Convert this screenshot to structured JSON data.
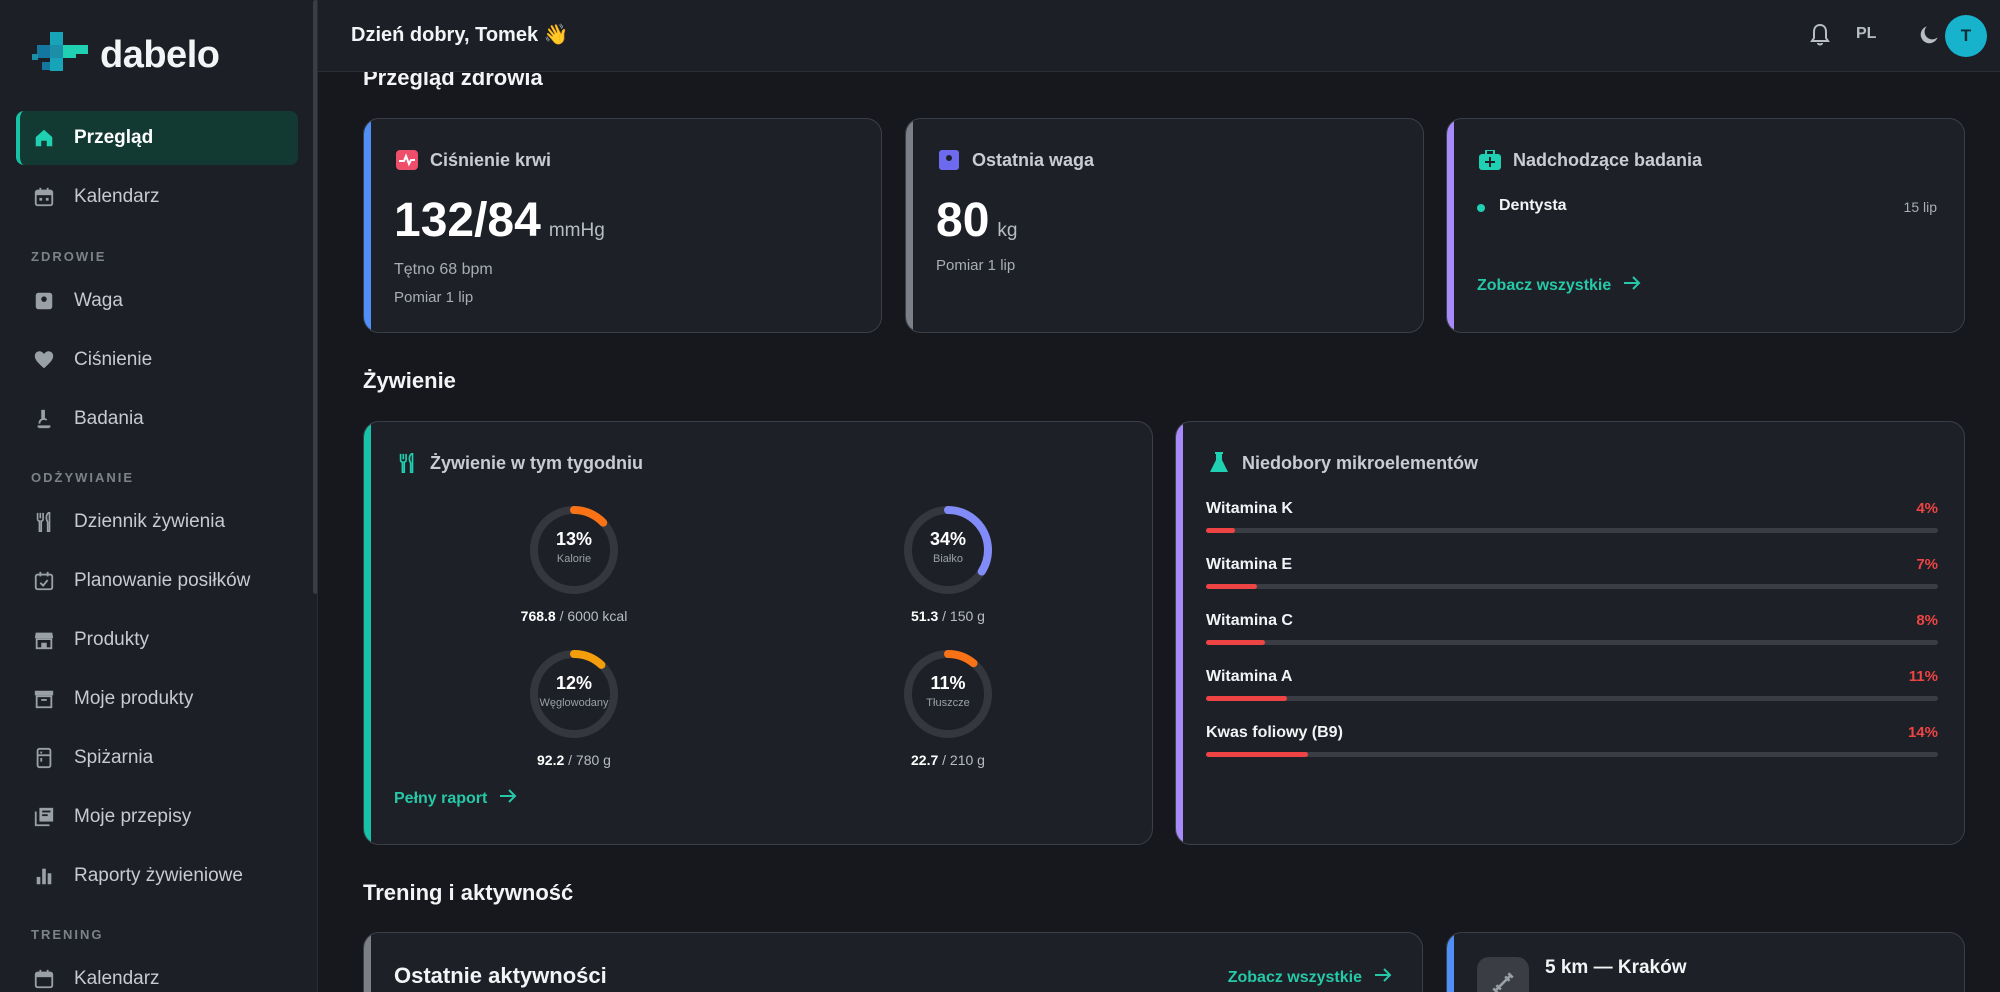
{
  "app": {
    "brand": "dabelo"
  },
  "header": {
    "greeting": "Dzień dobry, Tomek 👋",
    "lang": "PL",
    "avatar_initial": "T"
  },
  "sidebar": {
    "items": [
      {
        "label": "Przegląd",
        "icon": "home-icon",
        "active": true
      },
      {
        "label": "Kalendarz",
        "icon": "calendar-icon"
      }
    ],
    "sections": [
      {
        "title": "ZDROWIE",
        "items": [
          {
            "label": "Waga",
            "icon": "scale-icon"
          },
          {
            "label": "Ciśnienie",
            "icon": "heart-icon"
          },
          {
            "label": "Badania",
            "icon": "microscope-icon"
          }
        ]
      },
      {
        "title": "ODŻYWIANIE",
        "items": [
          {
            "label": "Dziennik żywienia",
            "icon": "utensils-icon"
          },
          {
            "label": "Planowanie posiłków",
            "icon": "calendar-check-icon"
          },
          {
            "label": "Produkty",
            "icon": "store-icon"
          },
          {
            "label": "Moje produkty",
            "icon": "archive-icon"
          },
          {
            "label": "Spiżarnia",
            "icon": "pantry-icon"
          },
          {
            "label": "Moje przepisy",
            "icon": "recipes-icon"
          },
          {
            "label": "Raporty żywieniowe",
            "icon": "bar-chart-icon"
          }
        ]
      },
      {
        "title": "TRENING",
        "items": [
          {
            "label": "Kalendarz",
            "icon": "calendar-icon"
          }
        ]
      }
    ]
  },
  "health": {
    "title": "Przegląd zdrowia",
    "bp": {
      "title": "Ciśnienie krwi",
      "value": "132/84",
      "unit": "mmHg",
      "pulse": "Tętno 68 bpm",
      "date": "Pomiar 1 lip",
      "accent": "#4f8ff7"
    },
    "weight": {
      "title": "Ostatnia waga",
      "value": "80",
      "unit": "kg",
      "date": "Pomiar 1 lip",
      "accent": "#7c7f86"
    },
    "tests": {
      "title": "Nadchodzące badania",
      "item": "Dentysta",
      "item_date": "15 lip",
      "link": "Zobacz wszystkie",
      "accent": "#a78bfa"
    }
  },
  "nutrition": {
    "title": "Żywienie",
    "week": {
      "title": "Żywienie w tym tygodniu",
      "rings": [
        {
          "pct_label": "13%",
          "pct": 13,
          "label": "Kalorie",
          "value": "768.8",
          "total": " / 6000 kcal",
          "color": "#f97316"
        },
        {
          "pct_label": "34%",
          "pct": 34,
          "label": "Białko",
          "value": "51.3",
          "total": " / 150 g",
          "color": "#818cf8"
        },
        {
          "pct_label": "12%",
          "pct": 12,
          "label": "Węglowodany",
          "value": "92.2",
          "total": " / 780 g",
          "color": "#f59e0b"
        },
        {
          "pct_label": "11%",
          "pct": 11,
          "label": "Tłuszcze",
          "value": "22.7",
          "total": " / 210 g",
          "color": "#f97316"
        }
      ],
      "link": "Pełny raport"
    },
    "deficits": {
      "title": "Niedobory mikroelementów",
      "items": [
        {
          "name": "Witamina K",
          "pct_label": "4%",
          "pct": 4
        },
        {
          "name": "Witamina E",
          "pct_label": "7%",
          "pct": 7
        },
        {
          "name": "Witamina C",
          "pct_label": "8%",
          "pct": 8
        },
        {
          "name": "Witamina A",
          "pct_label": "11%",
          "pct": 11
        },
        {
          "name": "Kwas foliowy (B9)",
          "pct_label": "14%",
          "pct": 14
        }
      ]
    }
  },
  "training": {
    "title": "Trening i aktywność",
    "recent": {
      "title": "Ostatnie aktywności",
      "link": "Zobacz wszystkie"
    },
    "goal": {
      "title": "5 km — Kraków"
    }
  }
}
